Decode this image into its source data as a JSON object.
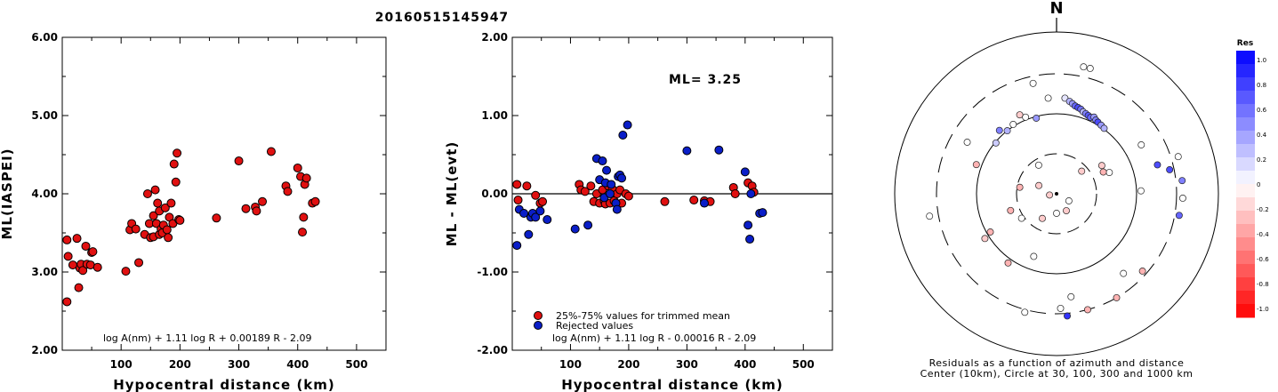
{
  "event_id": "20160515145947",
  "colors": {
    "accepted": "#e01010",
    "rejected": "#0a1ec8",
    "zero_line": "#000000"
  },
  "panel1": {
    "ylabel": "ML(IASPEI)",
    "xlabel": "Hypocentral distance (km)",
    "formula": "log A(nm) + 1.11 log R + 0.00189 R - 2.09",
    "xticks": [
      "100",
      "200",
      "300",
      "400",
      "500"
    ],
    "yticks": [
      "2.00",
      "3.00",
      "4.00",
      "5.00",
      "6.00"
    ]
  },
  "panel2": {
    "ylabel": "ML - ML(evt)",
    "xlabel": "Hypocentral distance (km)",
    "formula": "log A(nm) + 1.11 log R - 0.00016 R - 2.09",
    "ml_label": "ML= 3.25",
    "legend_accepted": "25%-75% values for trimmed mean",
    "legend_rejected": "Rejected values",
    "xticks": [
      "100",
      "200",
      "300",
      "400",
      "500"
    ],
    "yticks": [
      "-2.00",
      "-1.00",
      "0.00",
      "1.00",
      "2.00"
    ]
  },
  "panel3": {
    "north": "N",
    "caption_line1": "Residuals as a function of azimuth and distance",
    "caption_line2": "Center (10km), Circle at 30, 100, 300 and 1000 km",
    "colorbar_title": "Res",
    "colorbar_ticks": [
      "1.0",
      "0.8",
      "0.6",
      "0.4",
      "0.2",
      "0",
      "-0.2",
      "-0.4",
      "-0.6",
      "-0.8",
      "-1.0"
    ]
  },
  "chart_data": [
    {
      "type": "scatter",
      "title": "20160515145947",
      "xlabel": "Hypocentral distance (km)",
      "ylabel": "ML(IASPEI)",
      "xlim": [
        0,
        550
      ],
      "ylim": [
        2.0,
        6.0
      ],
      "grid": false,
      "points": [
        [
          8,
          3.41
        ],
        [
          10,
          3.2
        ],
        [
          8,
          2.62
        ],
        [
          18,
          3.09
        ],
        [
          25,
          3.43
        ],
        [
          28,
          2.8
        ],
        [
          30,
          3.05
        ],
        [
          32,
          3.1
        ],
        [
          35,
          3.02
        ],
        [
          40,
          3.33
        ],
        [
          42,
          3.1
        ],
        [
          48,
          3.09
        ],
        [
          50,
          3.25
        ],
        [
          52,
          3.26
        ],
        [
          60,
          3.06
        ],
        [
          108,
          3.01
        ],
        [
          115,
          3.54
        ],
        [
          118,
          3.62
        ],
        [
          125,
          3.55
        ],
        [
          130,
          3.12
        ],
        [
          140,
          3.48
        ],
        [
          145,
          4.0
        ],
        [
          148,
          3.62
        ],
        [
          150,
          3.44
        ],
        [
          155,
          3.45
        ],
        [
          155,
          3.72
        ],
        [
          158,
          4.05
        ],
        [
          160,
          3.62
        ],
        [
          162,
          3.88
        ],
        [
          165,
          3.78
        ],
        [
          165,
          3.48
        ],
        [
          168,
          3.55
        ],
        [
          170,
          3.5
        ],
        [
          172,
          3.6
        ],
        [
          175,
          3.82
        ],
        [
          178,
          3.54
        ],
        [
          180,
          3.44
        ],
        [
          182,
          3.7
        ],
        [
          185,
          3.88
        ],
        [
          188,
          3.62
        ],
        [
          190,
          4.38
        ],
        [
          193,
          4.15
        ],
        [
          195,
          4.52
        ],
        [
          198,
          3.67
        ],
        [
          200,
          3.66
        ],
        [
          262,
          3.69
        ],
        [
          300,
          4.42
        ],
        [
          312,
          3.81
        ],
        [
          328,
          3.83
        ],
        [
          330,
          3.78
        ],
        [
          340,
          3.9
        ],
        [
          355,
          4.54
        ],
        [
          380,
          4.1
        ],
        [
          383,
          4.03
        ],
        [
          400,
          4.33
        ],
        [
          405,
          4.22
        ],
        [
          408,
          3.51
        ],
        [
          410,
          3.7
        ],
        [
          412,
          4.12
        ],
        [
          415,
          4.2
        ],
        [
          425,
          3.88
        ],
        [
          430,
          3.9
        ]
      ],
      "series": [
        {
          "name": "",
          "color": "#e01010"
        }
      ]
    },
    {
      "type": "scatter",
      "title": "",
      "xlabel": "Hypocentral distance (km)",
      "ylabel": "ML - ML(evt)",
      "xlim": [
        0,
        550
      ],
      "ylim": [
        -2.0,
        2.0
      ],
      "hline": 0.0,
      "grid": false,
      "legend_placement": "bottom-left",
      "series": [
        {
          "name": "25%-75% values for trimmed mean",
          "color": "#e01010",
          "points": [
            [
              8,
              0.12
            ],
            [
              10,
              -0.08
            ],
            [
              25,
              0.1
            ],
            [
              40,
              -0.02
            ],
            [
              48,
              -0.12
            ],
            [
              52,
              -0.1
            ],
            [
              115,
              0.12
            ],
            [
              118,
              0.05
            ],
            [
              125,
              0.03
            ],
            [
              135,
              0.1
            ],
            [
              140,
              -0.1
            ],
            [
              145,
              0.0
            ],
            [
              150,
              -0.12
            ],
            [
              155,
              0.05
            ],
            [
              158,
              -0.09
            ],
            [
              160,
              -0.13
            ],
            [
              165,
              0.1
            ],
            [
              168,
              -0.12
            ],
            [
              172,
              0.06
            ],
            [
              175,
              -0.09
            ],
            [
              178,
              -0.12
            ],
            [
              180,
              0.0
            ],
            [
              185,
              0.05
            ],
            [
              188,
              -0.12
            ],
            [
              195,
              0.0
            ],
            [
              200,
              -0.03
            ],
            [
              262,
              -0.1
            ],
            [
              312,
              -0.08
            ],
            [
              330,
              -0.09
            ],
            [
              340,
              -0.1
            ],
            [
              380,
              0.08
            ],
            [
              383,
              0.0
            ],
            [
              405,
              0.14
            ],
            [
              412,
              0.1
            ],
            [
              415,
              0.02
            ]
          ]
        },
        {
          "name": "Rejected values",
          "color": "#0a1ec8",
          "points": [
            [
              8,
              -0.66
            ],
            [
              12,
              -0.2
            ],
            [
              20,
              -0.25
            ],
            [
              28,
              -0.52
            ],
            [
              32,
              -0.3
            ],
            [
              35,
              -0.25
            ],
            [
              40,
              -0.3
            ],
            [
              48,
              -0.22
            ],
            [
              60,
              -0.33
            ],
            [
              108,
              -0.45
            ],
            [
              130,
              -0.4
            ],
            [
              145,
              0.45
            ],
            [
              150,
              0.18
            ],
            [
              155,
              0.42
            ],
            [
              158,
              -0.05
            ],
            [
              160,
              0.14
            ],
            [
              162,
              0.3
            ],
            [
              168,
              0.0
            ],
            [
              170,
              0.12
            ],
            [
              178,
              -0.12
            ],
            [
              180,
              -0.2
            ],
            [
              182,
              0.22
            ],
            [
              185,
              0.24
            ],
            [
              188,
              0.2
            ],
            [
              190,
              0.75
            ],
            [
              198,
              0.88
            ],
            [
              300,
              0.55
            ],
            [
              330,
              -0.12
            ],
            [
              355,
              0.56
            ],
            [
              400,
              0.28
            ],
            [
              405,
              -0.4
            ],
            [
              408,
              -0.58
            ],
            [
              410,
              0.0
            ],
            [
              425,
              -0.25
            ],
            [
              430,
              -0.24
            ]
          ]
        }
      ],
      "annotation": "ML= 3.25"
    },
    {
      "type": "scatter",
      "title": "Residuals as a function of azimuth and distance",
      "subtitle": "Center (10km), Circle at 30, 100, 300 and 1000 km",
      "polar": true,
      "range_rings_km": [
        30,
        100,
        300,
        1000
      ],
      "colorbar_range": [
        -1.0,
        1.0
      ],
      "points": [
        {
          "az": 355,
          "rpx": 108,
          "res": 0.0
        },
        {
          "az": 5,
          "rpx": 108,
          "res": 0.1
        },
        {
          "az": 8,
          "rpx": 105,
          "res": 0.3
        },
        {
          "az": 10,
          "rpx": 103,
          "res": 0.4
        },
        {
          "az": 12,
          "rpx": 101,
          "res": 0.6
        },
        {
          "az": 14,
          "rpx": 100,
          "res": 0.7
        },
        {
          "az": 16,
          "rpx": 99,
          "res": 0.55
        },
        {
          "az": 18,
          "rpx": 97,
          "res": 0.3
        },
        {
          "az": 20,
          "rpx": 96,
          "res": 0.5
        },
        {
          "az": 22,
          "rpx": 95,
          "res": 0.65
        },
        {
          "az": 24,
          "rpx": 94,
          "res": 0.6
        },
        {
          "az": 26,
          "rpx": 96,
          "res": 0.4
        },
        {
          "az": 28,
          "rpx": 94,
          "res": 0.5
        },
        {
          "az": 30,
          "rpx": 93,
          "res": 0.7
        },
        {
          "az": 33,
          "rpx": 92,
          "res": 0.4
        },
        {
          "az": 36,
          "rpx": 91,
          "res": 0.3
        },
        {
          "az": 12,
          "rpx": 146,
          "res": 0.0
        },
        {
          "az": 15,
          "rpx": 146,
          "res": 0.0
        },
        {
          "az": 348,
          "rpx": 127,
          "res": 0.0
        },
        {
          "az": 345,
          "rpx": 88,
          "res": 0.4
        },
        {
          "az": 338,
          "rpx": 93,
          "res": 0.0
        },
        {
          "az": 335,
          "rpx": 98,
          "res": -0.2
        },
        {
          "az": 328,
          "rpx": 92,
          "res": 0.0
        },
        {
          "az": 322,
          "rpx": 90,
          "res": 0.3
        },
        {
          "az": 318,
          "rpx": 96,
          "res": 0.5
        },
        {
          "az": 310,
          "rpx": 89,
          "res": 0.2
        },
        {
          "az": 300,
          "rpx": 116,
          "res": 0.0
        },
        {
          "az": 290,
          "rpx": 96,
          "res": -0.3
        },
        {
          "az": 260,
          "rpx": 145,
          "res": 0.0
        },
        {
          "az": 240,
          "rpx": 86,
          "res": -0.3
        },
        {
          "az": 238,
          "rpx": 95,
          "res": -0.2
        },
        {
          "az": 215,
          "rpx": 95,
          "res": -0.3
        },
        {
          "az": 200,
          "rpx": 75,
          "res": 0.0
        },
        {
          "az": 195,
          "rpx": 138,
          "res": 0.0
        },
        {
          "az": 178,
          "rpx": 129,
          "res": 0.0
        },
        {
          "az": 175,
          "rpx": 138,
          "res": 0.8
        },
        {
          "az": 172,
          "rpx": 117,
          "res": 0.0
        },
        {
          "az": 165,
          "rpx": 135,
          "res": -0.3
        },
        {
          "az": 150,
          "rpx": 135,
          "res": -0.3
        },
        {
          "az": 140,
          "rpx": 117,
          "res": 0.0
        },
        {
          "az": 132,
          "rpx": 130,
          "res": -0.3
        },
        {
          "az": 60,
          "rpx": 110,
          "res": 0.0
        },
        {
          "az": 100,
          "rpx": 140,
          "res": 0.6
        },
        {
          "az": 92,
          "rpx": 142,
          "res": 0.0
        },
        {
          "az": 84,
          "rpx": 142,
          "res": 0.5
        },
        {
          "az": 78,
          "rpx": 130,
          "res": 0.7
        },
        {
          "az": 74,
          "rpx": 118,
          "res": 0.7
        },
        {
          "az": 73,
          "rpx": 143,
          "res": 0.0
        },
        {
          "az": 68,
          "rpx": 64,
          "res": 0.0
        },
        {
          "az": 65,
          "rpx": 58,
          "res": -0.3
        },
        {
          "az": 58,
          "rpx": 60,
          "res": -0.2
        },
        {
          "az": 48,
          "rpx": 38,
          "res": -0.2
        },
        {
          "az": 88,
          "rpx": 95,
          "res": 0.0
        },
        {
          "az": 180,
          "rpx": 22,
          "res": 0.0
        },
        {
          "az": 210,
          "rpx": 32,
          "res": -0.2
        },
        {
          "az": 250,
          "rpx": 55,
          "res": -0.3
        },
        {
          "az": 280,
          "rpx": 42,
          "res": -0.3
        },
        {
          "az": 295,
          "rpx": 22,
          "res": -0.2
        },
        {
          "az": 328,
          "rpx": 38,
          "res": 0.0
        },
        {
          "az": 235,
          "rpx": 48,
          "res": 0.0
        },
        {
          "az": 150,
          "rpx": 22,
          "res": -0.2
        },
        {
          "az": 260,
          "rpx": 8,
          "res": -0.2
        },
        {
          "az": 120,
          "rpx": 16,
          "res": 0.0
        }
      ]
    }
  ]
}
